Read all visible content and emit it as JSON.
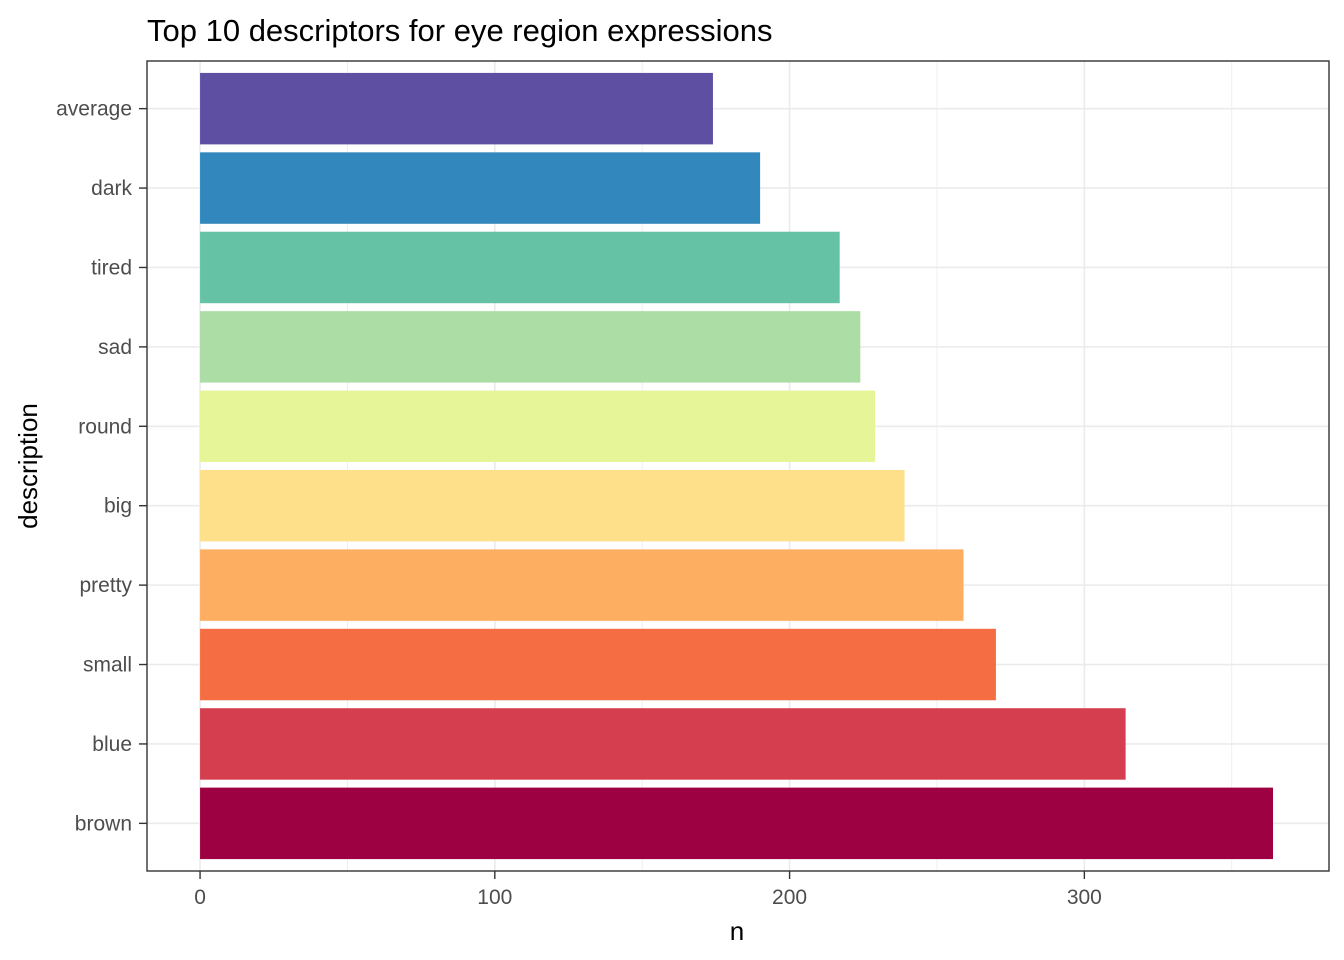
{
  "chart_data": {
    "type": "bar",
    "orientation": "horizontal",
    "title": "Top 10 descriptors for eye region expressions",
    "xlabel": "n",
    "ylabel": "description",
    "categories": [
      "average",
      "dark",
      "tired",
      "sad",
      "round",
      "big",
      "pretty",
      "small",
      "blue",
      "brown"
    ],
    "values": [
      174,
      190,
      217,
      224,
      229,
      239,
      259,
      270,
      314,
      364
    ],
    "colors": [
      "#5E4FA2",
      "#3288BD",
      "#66C2A5",
      "#ABDDA4",
      "#E6F598",
      "#FEE08B",
      "#FDAE61",
      "#F46D43",
      "#D53E4F",
      "#9E0142"
    ],
    "xlim": [
      -18,
      383
    ],
    "x_ticks": [
      0,
      100,
      200,
      300
    ],
    "x_tick_labels": [
      "0",
      "100",
      "200",
      "300"
    ],
    "grid": true,
    "legend": "none"
  }
}
